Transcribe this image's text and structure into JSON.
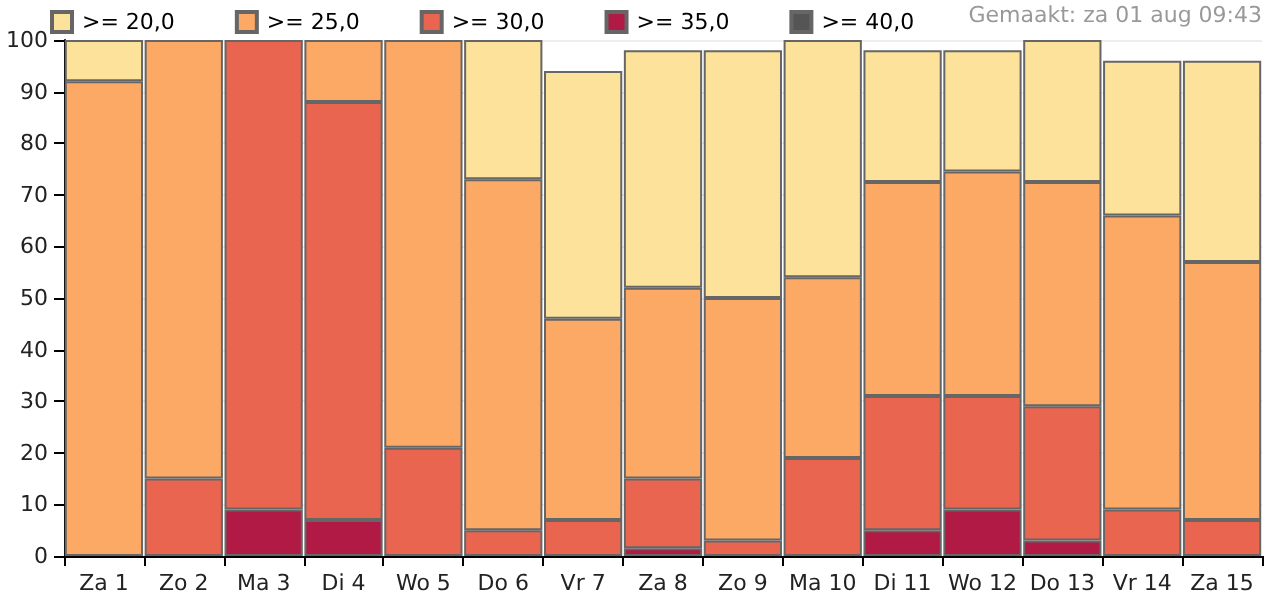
{
  "chart_data": {
    "type": "bar",
    "stacked": true,
    "categories": [
      "Za 1",
      "Zo 2",
      "Ma 3",
      "Di 4",
      "Wo 5",
      "Do 6",
      "Vr 7",
      "Za 8",
      "Zo 9",
      "Ma 10",
      "Di 11",
      "Wo 12",
      "Do 13",
      "Vr 14",
      "Za 15"
    ],
    "series": [
      {
        "name": ">= 40,0",
        "color": "#555555",
        "values": [
          null,
          null,
          null,
          null,
          null,
          null,
          null,
          null,
          null,
          null,
          null,
          null,
          null,
          null,
          null
        ]
      },
      {
        "name": ">= 35,0",
        "color": "#b01a45",
        "values": [
          0,
          0,
          9,
          7,
          0,
          0,
          0,
          1.5,
          0,
          0,
          5,
          9,
          3,
          0,
          0
        ]
      },
      {
        "name": ">= 30,0",
        "color": "#e96550",
        "values": [
          0,
          15,
          91,
          81,
          21,
          5,
          7,
          13.5,
          3,
          19,
          26,
          22,
          26,
          9,
          7
        ]
      },
      {
        "name": ">= 25,0",
        "color": "#fca965",
        "values": [
          92,
          85,
          0,
          12,
          79,
          68,
          39,
          37,
          47,
          35,
          41.5,
          43.5,
          43.5,
          57,
          50
        ]
      },
      {
        "name": ">= 20,0",
        "color": "#fde29b",
        "values": [
          8,
          0,
          0,
          0,
          0,
          27,
          48,
          46,
          48,
          46,
          25.5,
          23.5,
          27.5,
          30,
          39
        ]
      }
    ],
    "ylim": [
      0,
      100
    ],
    "yticks": [
      0,
      10,
      20,
      30,
      40,
      50,
      60,
      70,
      80,
      90,
      100
    ],
    "grid": "y",
    "legend": "top left",
    "annotations": [
      "Gemaakt: za 01 aug 09:43"
    ]
  }
}
